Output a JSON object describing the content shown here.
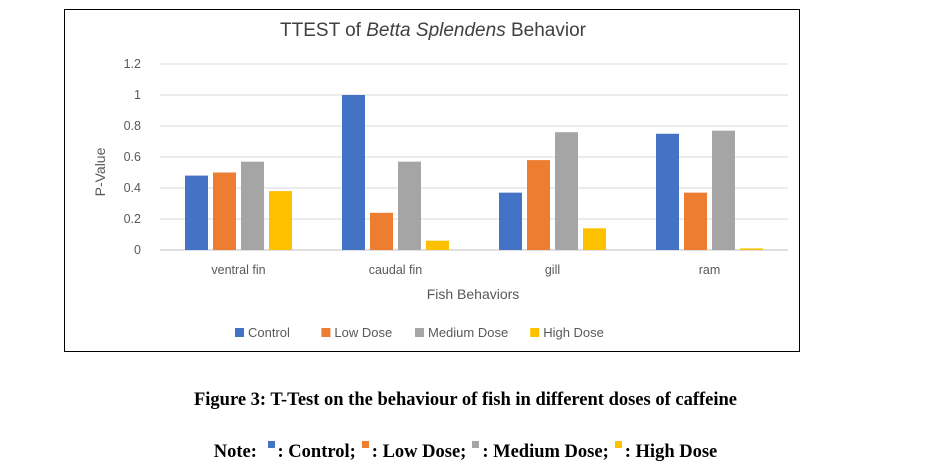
{
  "chart_data": {
    "type": "bar",
    "title_prefix": "TTEST of ",
    "title_italic": "Betta Splendens",
    "title_suffix": " Behavior",
    "xlabel": "Fish Behaviors",
    "ylabel": "P-Value",
    "ylim": [
      0,
      1.2
    ],
    "yticks": [
      "0",
      "0.2",
      "0.4",
      "0.6",
      "0.8",
      "1",
      "1.2"
    ],
    "categories": [
      "ventral fin",
      "caudal fin",
      "gill",
      "ram"
    ],
    "series": [
      {
        "name": "Control",
        "color": "#4472C4",
        "values": [
          0.48,
          1.0,
          0.37,
          0.75
        ]
      },
      {
        "name": "Low Dose",
        "color": "#ED7D31",
        "values": [
          0.5,
          0.24,
          0.58,
          0.37
        ]
      },
      {
        "name": "Medium Dose",
        "color": "#A5A5A5",
        "values": [
          0.57,
          0.57,
          0.76,
          0.77
        ]
      },
      {
        "name": "High Dose",
        "color": "#FFC000",
        "values": [
          0.38,
          0.06,
          0.14,
          0.01
        ]
      }
    ],
    "legend_position": "bottom",
    "gridlines": true
  },
  "caption": "Figure 3: T-Test on the behaviour of fish in different doses of caffeine",
  "note": {
    "label": "Note:",
    "items": [
      {
        "text": ": Control;",
        "color": "#4472C4"
      },
      {
        "text": ": Low Dose;",
        "color": "#ED7D31"
      },
      {
        "text": ": Medium Dose;",
        "color": "#A5A5A5"
      },
      {
        "text": ": High Dose",
        "color": "#FFC000"
      }
    ]
  }
}
